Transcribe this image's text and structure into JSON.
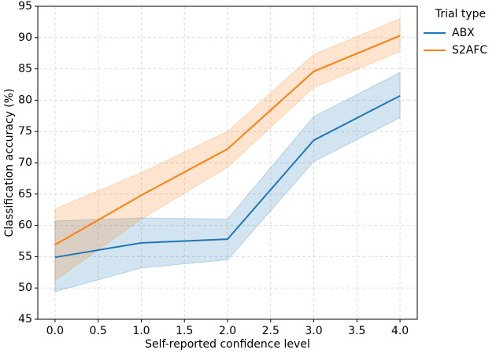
{
  "chart_data": {
    "type": "line",
    "xlabel": "Self-reported confidence level",
    "ylabel": "Classification accuracy (%)",
    "x": [
      0,
      1,
      2,
      3,
      4
    ],
    "series": [
      {
        "name": "ABX",
        "color": "#1f77b4",
        "values": [
          54.9,
          57.2,
          57.8,
          73.6,
          80.7
        ],
        "lower": [
          49.4,
          53.2,
          54.5,
          70.2,
          77.2
        ],
        "upper": [
          60.7,
          61.2,
          61.0,
          77.4,
          84.4
        ]
      },
      {
        "name": "S2AFC",
        "color": "#ff7f0e",
        "values": [
          56.9,
          64.8,
          72.2,
          84.6,
          90.3
        ],
        "lower": [
          51.2,
          61.0,
          69.3,
          82.0,
          87.8
        ],
        "upper": [
          62.6,
          68.4,
          75.0,
          87.3,
          93.0
        ]
      }
    ],
    "xlim": [
      -0.2,
      4.2
    ],
    "ylim": [
      45,
      95
    ],
    "xticks": [
      {
        "value": 0,
        "label": "0.0"
      },
      {
        "value": 0.5,
        "label": "0.5"
      },
      {
        "value": 1,
        "label": "1.0"
      },
      {
        "value": 1.5,
        "label": "1.5"
      },
      {
        "value": 2,
        "label": "2.0"
      },
      {
        "value": 2.5,
        "label": "2.5"
      },
      {
        "value": 3,
        "label": "3.0"
      },
      {
        "value": 3.5,
        "label": "3.5"
      },
      {
        "value": 4,
        "label": "4.0"
      }
    ],
    "yticks": [
      45,
      50,
      55,
      60,
      65,
      70,
      75,
      80,
      85,
      90,
      95
    ],
    "grid": true,
    "legend_title": "Trial type",
    "legend_position": "outside-right"
  }
}
